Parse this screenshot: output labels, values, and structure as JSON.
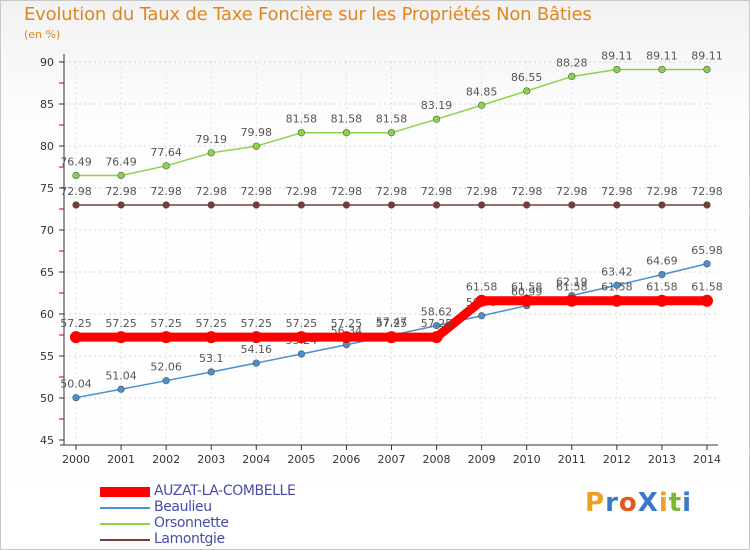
{
  "chart_data": {
    "type": "line",
    "title": "Evolution du Taux de Taxe Foncière sur les Propriétés Non Bâties",
    "ylabel": "(en %)",
    "xlabel": "",
    "x": [
      "2000",
      "2001",
      "2002",
      "2003",
      "2004",
      "2005",
      "2006",
      "2007",
      "2008",
      "2009",
      "2010",
      "2011",
      "2012",
      "2013",
      "2014"
    ],
    "ylim": [
      45,
      90
    ],
    "yticks": [
      45,
      50,
      55,
      60,
      65,
      70,
      75,
      80,
      85,
      90
    ],
    "series": [
      {
        "name": "AUZAT-LA-COMBELLE",
        "color": "#ff0000",
        "highlight": true,
        "values": [
          57.25,
          57.25,
          57.25,
          57.25,
          57.25,
          57.25,
          57.25,
          57.25,
          57.25,
          61.58,
          61.58,
          61.58,
          61.58,
          61.58,
          61.58
        ],
        "labels": [
          "57.25",
          "57.25",
          "57.25",
          "57.25",
          "57.25",
          "57.25",
          "57.25",
          "57.25",
          "57.25",
          "61.58",
          "61.58",
          "61.58",
          "61.58",
          "61.58",
          "61.58"
        ]
      },
      {
        "name": "Beaulieu",
        "color": "#4a90d0",
        "values": [
          50.04,
          51.04,
          52.06,
          53.1,
          54.16,
          55.24,
          56.34,
          57.47,
          58.62,
          59.79,
          60.99,
          62.19,
          63.42,
          64.69,
          65.98
        ],
        "labels": [
          "50.04",
          "51.04",
          "52.06",
          "53.1",
          "54.16",
          "55.24",
          "56.34",
          "57.47",
          "58.62",
          "59.79",
          "60.99",
          "62.19",
          "63.42",
          "64.69",
          "65.98"
        ]
      },
      {
        "name": "Orsonnette",
        "color": "#8ad44a",
        "values": [
          76.49,
          76.49,
          77.64,
          79.19,
          79.98,
          81.58,
          81.58,
          81.58,
          83.19,
          84.85,
          86.55,
          88.28,
          89.11,
          89.11,
          89.11
        ],
        "labels": [
          "76.49",
          "76.49",
          "77.64",
          "79.19",
          "79.98",
          "81.58",
          "81.58",
          "81.58",
          "83.19",
          "84.85",
          "86.55",
          "88.28",
          "89.11",
          "89.11",
          "89.11"
        ]
      },
      {
        "name": "Lamontgie",
        "color": "#7a3a3a",
        "values": [
          72.98,
          72.98,
          72.98,
          72.98,
          72.98,
          72.98,
          72.98,
          72.98,
          72.98,
          72.98,
          72.98,
          72.98,
          72.98,
          72.98,
          72.98
        ],
        "labels": [
          "72.98",
          "72.98",
          "72.98",
          "72.98",
          "72.98",
          "72.98",
          "72.98",
          "72.98",
          "72.98",
          "72.98",
          "72.98",
          "72.98",
          "72.98",
          "72.98",
          "72.98"
        ]
      }
    ]
  },
  "logo": {
    "text": "ProXiti",
    "letters": [
      "P",
      "r",
      "o",
      "X",
      "i",
      "t",
      "i"
    ],
    "colors": [
      "#f0a020",
      "#3a78c8",
      "#e05a20",
      "#3a78c8",
      "#f0a020",
      "#7ab830",
      "#3a78c8"
    ]
  }
}
